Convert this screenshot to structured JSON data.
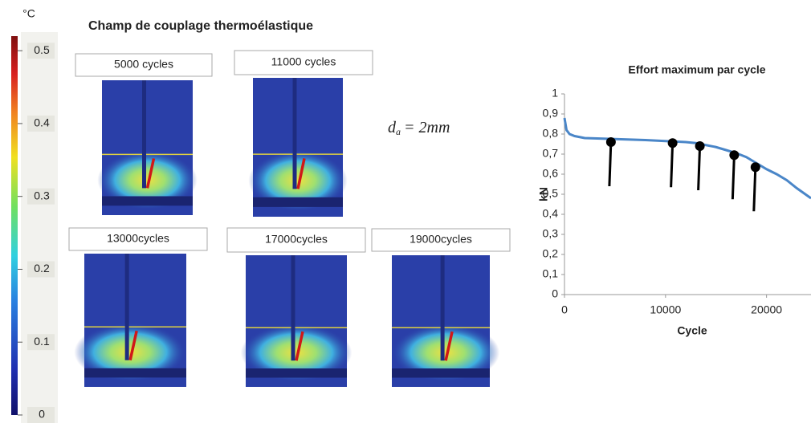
{
  "panel_title": "Champ de couplage thermoélastique",
  "colorbar": {
    "unit": "°C",
    "lim": [
      0,
      0.52
    ],
    "ticks": [
      0,
      0.1,
      0.2,
      0.3,
      0.4,
      0.5
    ]
  },
  "images": [
    {
      "label": "5000 cycles"
    },
    {
      "label": "11000 cycles"
    },
    {
      "label": "13000cycles"
    },
    {
      "label": "17000cycles"
    },
    {
      "label": "19000cycles"
    }
  ],
  "equation": {
    "base": "d",
    "sub": "a",
    "rest": "= 2mm"
  },
  "chart_data": {
    "type": "line",
    "title": "Effort maximum par cycle",
    "x_label": "Cycle",
    "y_label": "kN",
    "x": [
      0,
      200,
      500,
      1000,
      2000,
      5000,
      8000,
      10000,
      12000,
      13000,
      14000,
      15000,
      16000,
      17000,
      18000,
      19000,
      20000,
      21000,
      22000,
      23000,
      24400
    ],
    "series": [
      {
        "color": "#4a86c8",
        "values": [
          0.88,
          0.82,
          0.8,
          0.79,
          0.78,
          0.775,
          0.77,
          0.765,
          0.76,
          0.755,
          0.745,
          0.735,
          0.72,
          0.705,
          0.685,
          0.655,
          0.625,
          0.6,
          0.57,
          0.53,
          0.48
        ]
      }
    ],
    "markers": {
      "x": [
        4600,
        10700,
        13400,
        16800,
        18900
      ],
      "y": [
        0.76,
        0.755,
        0.74,
        0.695,
        0.635
      ]
    },
    "xlim": [
      0,
      24400
    ],
    "ylim": [
      0,
      1
    ],
    "xticks": [
      0,
      10000,
      20000
    ],
    "yticks": [
      0,
      {
        "value": 0.1,
        "label": "0,1"
      },
      {
        "value": 0.2,
        "label": "0,2"
      },
      {
        "value": 0.3,
        "label": "0,3"
      },
      {
        "value": 0.4,
        "label": "0,4"
      },
      {
        "value": 0.5,
        "label": "0,5"
      },
      {
        "value": 0.6,
        "label": "0,6"
      },
      {
        "value": 0.7,
        "label": "0,7"
      },
      {
        "value": 0.8,
        "label": "0,8"
      },
      {
        "value": 0.9,
        "label": "0,9"
      },
      1
    ]
  }
}
